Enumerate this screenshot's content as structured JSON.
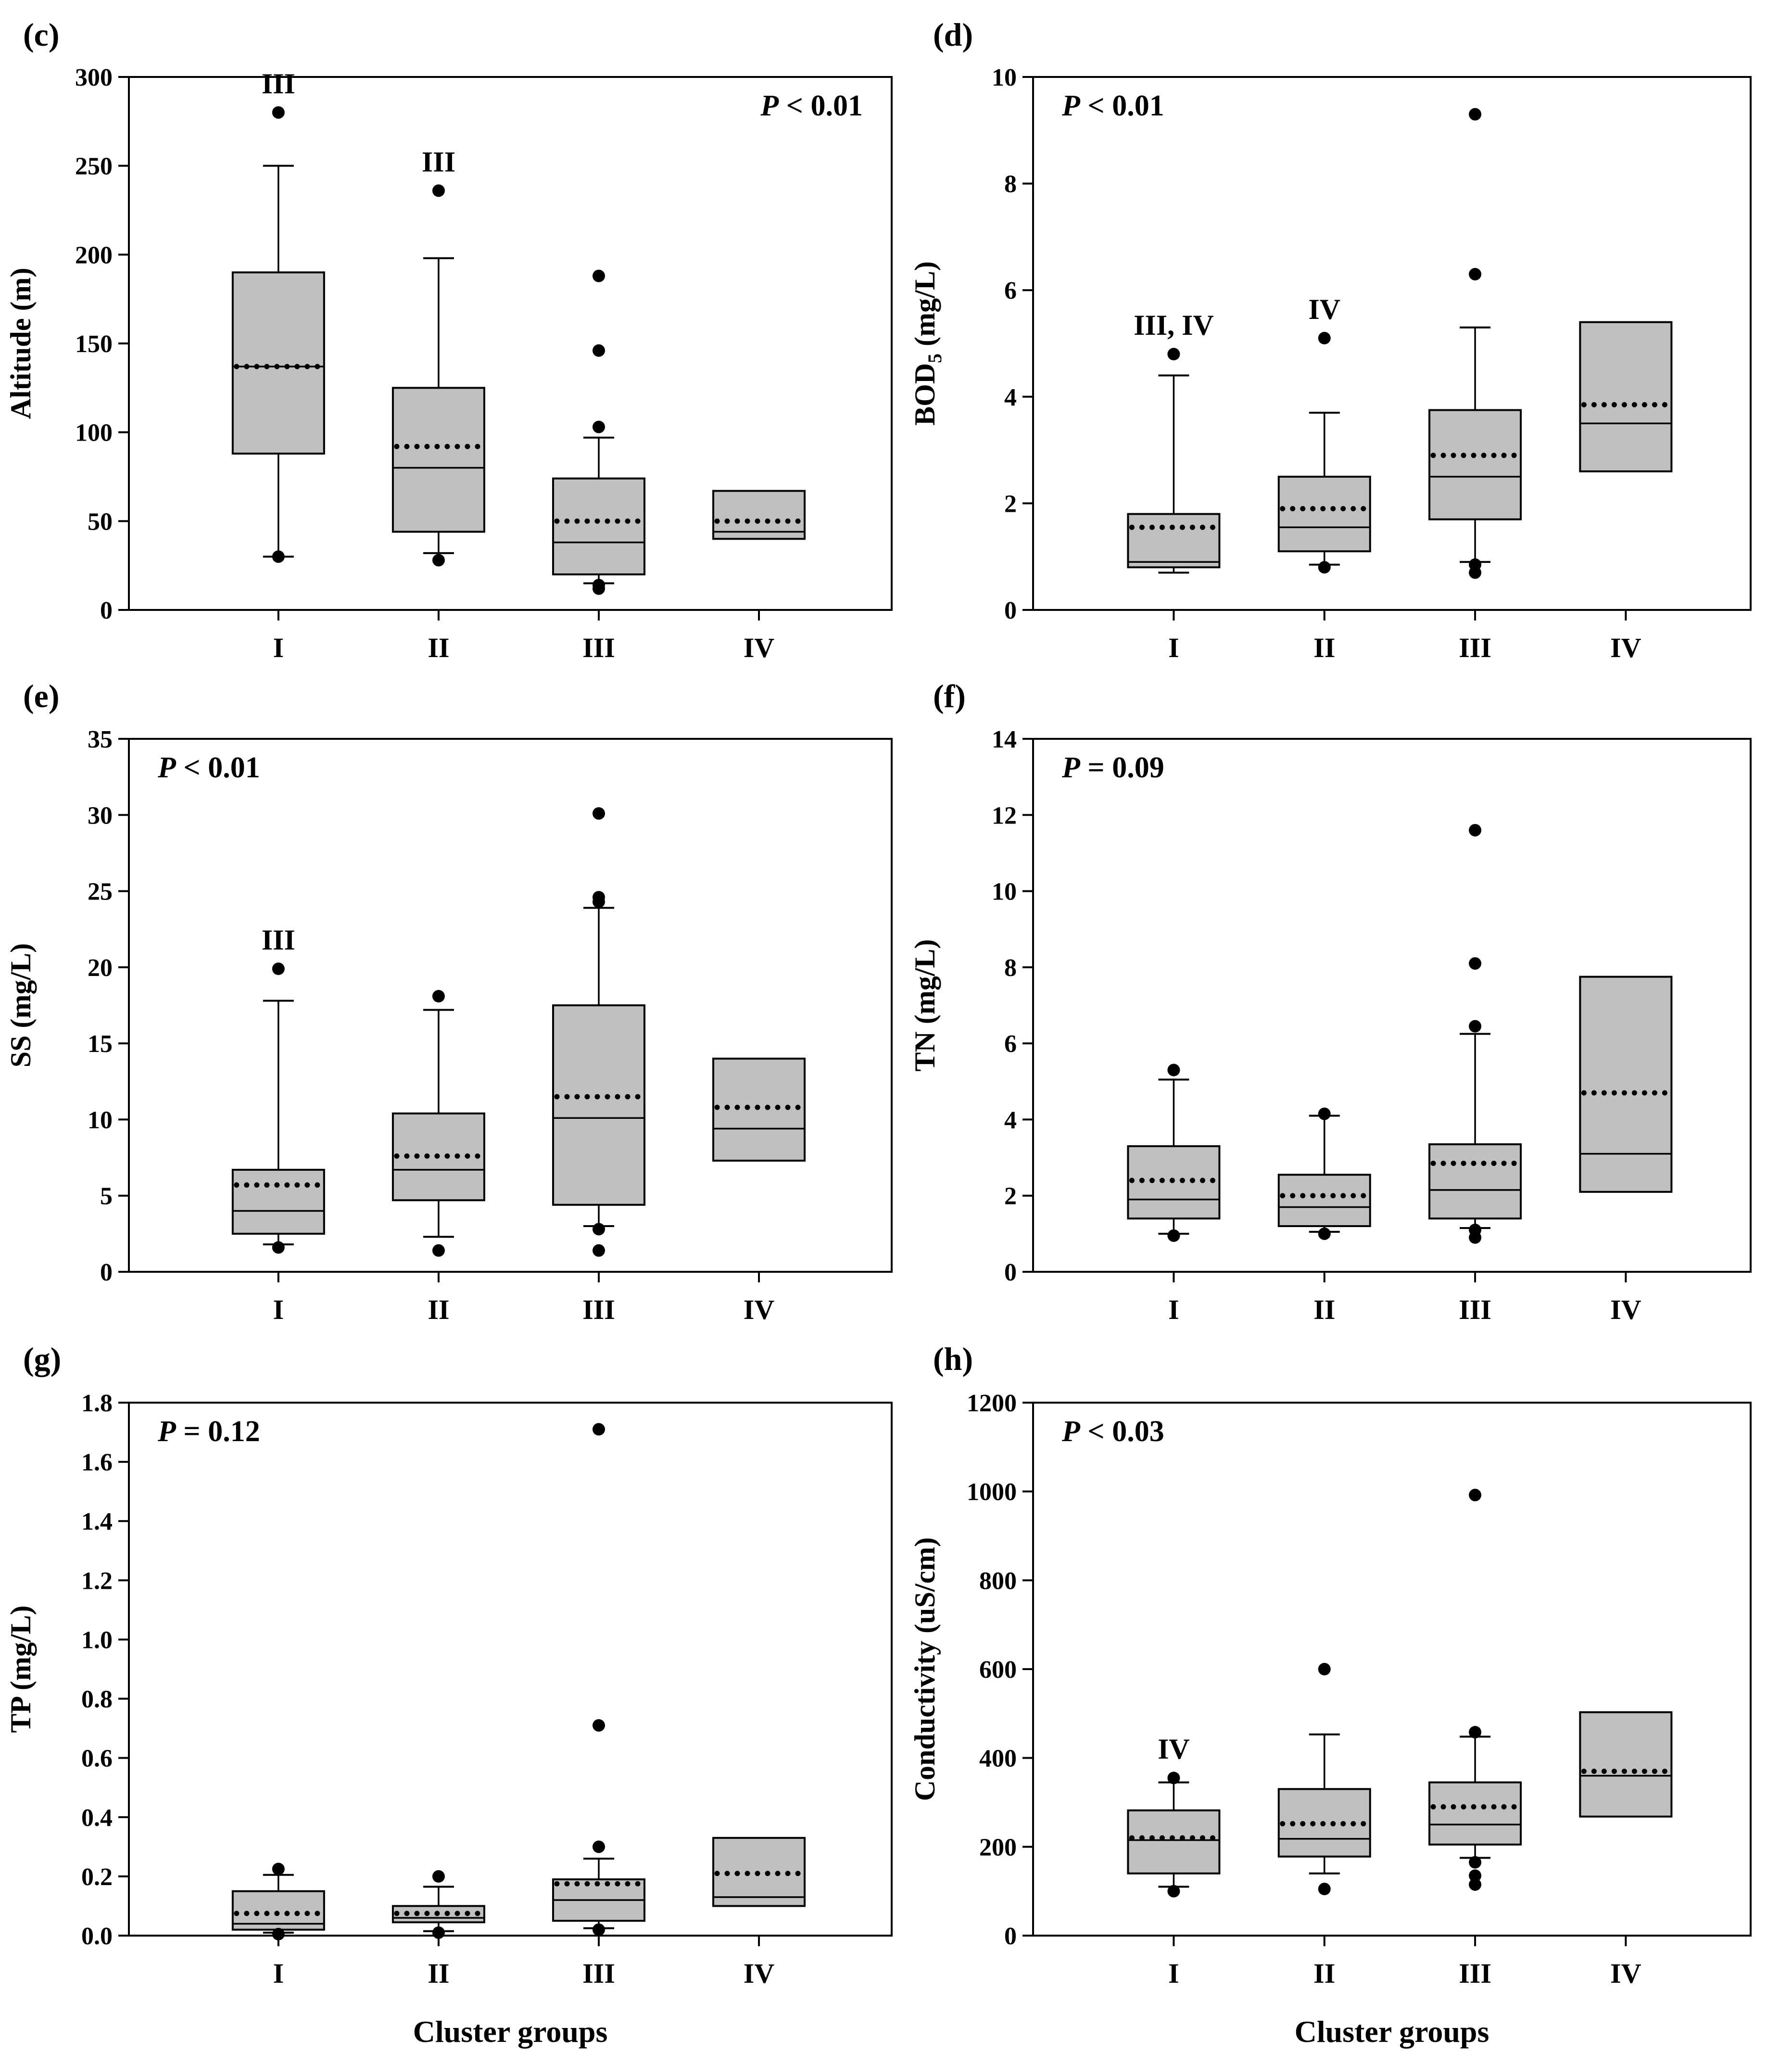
{
  "figure": {
    "x_axis_title": "Cluster groups"
  },
  "colors": {
    "box_fill": "#c0c0c0",
    "stroke": "#000000"
  },
  "chart_data": [
    {
      "id": "c",
      "type": "box",
      "panel_label": "(c)",
      "ylabel": "Altitude (m)",
      "ylim": [
        0,
        300
      ],
      "yticks": [
        0,
        50,
        100,
        150,
        200,
        250,
        300
      ],
      "ytick_labels": [
        "0",
        "50",
        "100",
        "150",
        "200",
        "250",
        "300"
      ],
      "p_prefix": "P",
      "p_suffix": " < 0.01",
      "p_position": "top-right",
      "categories": [
        "I",
        "II",
        "III",
        "IV"
      ],
      "boxes": [
        {
          "q1": 88,
          "median": 137,
          "q3": 190,
          "mean": 137,
          "wlo": 30,
          "whi": 250,
          "outliers": [
            280,
            30
          ],
          "sig": "III"
        },
        {
          "q1": 44,
          "median": 80,
          "q3": 125,
          "mean": 92,
          "wlo": 32,
          "whi": 198,
          "outliers": [
            236,
            28
          ],
          "sig": "III"
        },
        {
          "q1": 20,
          "median": 38,
          "q3": 74,
          "mean": 50,
          "wlo": 15,
          "whi": 97,
          "outliers": [
            188,
            146,
            103,
            14,
            12
          ],
          "sig": ""
        },
        {
          "q1": 40,
          "median": 44,
          "q3": 67,
          "mean": 50,
          "wlo": null,
          "whi": null,
          "outliers": [],
          "sig": ""
        }
      ]
    },
    {
      "id": "d",
      "type": "box",
      "panel_label": "(d)",
      "ylabel": "BOD",
      "ylabel_sub": "5",
      "ylabel_unit": " (mg/L)",
      "ylim": [
        0,
        10
      ],
      "yticks": [
        0,
        2,
        4,
        6,
        8,
        10
      ],
      "ytick_labels": [
        "0",
        "2",
        "4",
        "6",
        "8",
        "10"
      ],
      "p_prefix": "P",
      "p_suffix": " < 0.01",
      "p_position": "top-left",
      "categories": [
        "I",
        "II",
        "III",
        "IV"
      ],
      "boxes": [
        {
          "q1": 0.8,
          "median": 0.9,
          "q3": 1.8,
          "mean": 1.55,
          "wlo": 0.7,
          "whi": 4.4,
          "outliers": [
            4.8
          ],
          "sig": "III, IV"
        },
        {
          "q1": 1.1,
          "median": 1.55,
          "q3": 2.5,
          "mean": 1.9,
          "wlo": 0.85,
          "whi": 3.7,
          "outliers": [
            5.1,
            0.8
          ],
          "sig": "IV"
        },
        {
          "q1": 1.7,
          "median": 2.5,
          "q3": 3.75,
          "mean": 2.9,
          "wlo": 0.9,
          "whi": 5.3,
          "outliers": [
            9.3,
            6.3,
            0.85,
            0.7
          ],
          "sig": ""
        },
        {
          "q1": 2.6,
          "median": 3.5,
          "q3": 5.4,
          "mean": 3.85,
          "wlo": null,
          "whi": null,
          "outliers": [],
          "sig": ""
        }
      ]
    },
    {
      "id": "e",
      "type": "box",
      "panel_label": "(e)",
      "ylabel": "SS (mg/L)",
      "ylim": [
        0,
        35
      ],
      "yticks": [
        0,
        5,
        10,
        15,
        20,
        25,
        30,
        35
      ],
      "ytick_labels": [
        "0",
        "5",
        "10",
        "15",
        "20",
        "25",
        "30",
        "35"
      ],
      "p_prefix": "P",
      "p_suffix": " < 0.01",
      "p_position": "top-left",
      "categories": [
        "I",
        "II",
        "III",
        "IV"
      ],
      "boxes": [
        {
          "q1": 2.5,
          "median": 4.0,
          "q3": 6.7,
          "mean": 5.7,
          "wlo": 1.8,
          "whi": 17.8,
          "outliers": [
            19.9,
            1.6
          ],
          "sig": "III"
        },
        {
          "q1": 4.7,
          "median": 6.7,
          "q3": 10.4,
          "mean": 7.6,
          "wlo": 2.3,
          "whi": 17.2,
          "outliers": [
            18.1,
            1.4
          ],
          "sig": ""
        },
        {
          "q1": 4.4,
          "median": 10.1,
          "q3": 17.5,
          "mean": 11.5,
          "wlo": 3.0,
          "whi": 23.9,
          "outliers": [
            30.1,
            24.6,
            24.3,
            2.8,
            1.4
          ],
          "sig": ""
        },
        {
          "q1": 7.3,
          "median": 9.4,
          "q3": 14.0,
          "mean": 10.8,
          "wlo": null,
          "whi": null,
          "outliers": [],
          "sig": ""
        }
      ]
    },
    {
      "id": "f",
      "type": "box",
      "panel_label": "(f)",
      "ylabel": "TN (mg/L)",
      "ylim": [
        0,
        14
      ],
      "yticks": [
        0,
        2,
        4,
        6,
        8,
        10,
        12,
        14
      ],
      "ytick_labels": [
        "0",
        "2",
        "4",
        "6",
        "8",
        "10",
        "12",
        "14"
      ],
      "p_prefix": "P",
      "p_suffix": " = 0.09",
      "p_position": "top-left",
      "categories": [
        "I",
        "II",
        "III",
        "IV"
      ],
      "boxes": [
        {
          "q1": 1.4,
          "median": 1.9,
          "q3": 3.3,
          "mean": 2.4,
          "wlo": 1.0,
          "whi": 5.05,
          "outliers": [
            5.3,
            0.95
          ],
          "sig": ""
        },
        {
          "q1": 1.2,
          "median": 1.7,
          "q3": 2.55,
          "mean": 2.0,
          "wlo": 1.05,
          "whi": 4.1,
          "outliers": [
            4.15,
            1.0
          ],
          "sig": ""
        },
        {
          "q1": 1.4,
          "median": 2.15,
          "q3": 3.35,
          "mean": 2.85,
          "wlo": 1.15,
          "whi": 6.25,
          "outliers": [
            11.6,
            8.1,
            6.45,
            1.1,
            0.9
          ],
          "sig": ""
        },
        {
          "q1": 2.1,
          "median": 3.1,
          "q3": 7.75,
          "mean": 4.7,
          "wlo": null,
          "whi": null,
          "outliers": [],
          "sig": ""
        }
      ]
    },
    {
      "id": "g",
      "type": "box",
      "panel_label": "(g)",
      "ylabel": "TP (mg/L)",
      "ylim": [
        0,
        1.8
      ],
      "yticks": [
        0,
        0.2,
        0.4,
        0.6,
        0.8,
        1.0,
        1.2,
        1.4,
        1.6,
        1.8
      ],
      "ytick_labels": [
        "0.0",
        "0.2",
        "0.4",
        "0.6",
        "0.8",
        "1.0",
        "1.2",
        "1.4",
        "1.6",
        "1.8"
      ],
      "p_prefix": "P",
      "p_suffix": " = 0.12",
      "p_position": "top-left",
      "categories": [
        "I",
        "II",
        "III",
        "IV"
      ],
      "boxes": [
        {
          "q1": 0.02,
          "median": 0.04,
          "q3": 0.15,
          "mean": 0.075,
          "wlo": 0.01,
          "whi": 0.205,
          "outliers": [
            0.225,
            0.005
          ],
          "sig": ""
        },
        {
          "q1": 0.045,
          "median": 0.06,
          "q3": 0.1,
          "mean": 0.075,
          "wlo": 0.015,
          "whi": 0.165,
          "outliers": [
            0.2,
            0.01
          ],
          "sig": ""
        },
        {
          "q1": 0.05,
          "median": 0.12,
          "q3": 0.19,
          "mean": 0.175,
          "wlo": 0.025,
          "whi": 0.26,
          "outliers": [
            1.71,
            0.71,
            0.3,
            0.02
          ],
          "sig": ""
        },
        {
          "q1": 0.1,
          "median": 0.13,
          "q3": 0.33,
          "mean": 0.21,
          "wlo": null,
          "whi": null,
          "outliers": [],
          "sig": ""
        }
      ]
    },
    {
      "id": "h",
      "type": "box",
      "panel_label": "(h)",
      "ylabel": "Conductivity (uS/cm)",
      "ylim": [
        0,
        1200
      ],
      "yticks": [
        0,
        200,
        400,
        600,
        800,
        1000,
        1200
      ],
      "ytick_labels": [
        "0",
        "200",
        "400",
        "600",
        "800",
        "1000",
        "1200"
      ],
      "p_prefix": "P",
      "p_suffix": " < 0.03",
      "p_position": "top-left",
      "categories": [
        "I",
        "II",
        "III",
        "IV"
      ],
      "boxes": [
        {
          "q1": 140,
          "median": 215,
          "q3": 282,
          "mean": 220,
          "wlo": 110,
          "whi": 345,
          "outliers": [
            355,
            100
          ],
          "sig": "IV"
        },
        {
          "q1": 178,
          "median": 218,
          "q3": 330,
          "mean": 252,
          "wlo": 140,
          "whi": 453,
          "outliers": [
            600,
            105
          ],
          "sig": ""
        },
        {
          "q1": 205,
          "median": 250,
          "q3": 345,
          "mean": 290,
          "wlo": 175,
          "whi": 448,
          "outliers": [
            992,
            458,
            165,
            135,
            115
          ],
          "sig": ""
        },
        {
          "q1": 268,
          "median": 360,
          "q3": 503,
          "mean": 370,
          "wlo": null,
          "whi": null,
          "outliers": [],
          "sig": ""
        }
      ]
    }
  ]
}
